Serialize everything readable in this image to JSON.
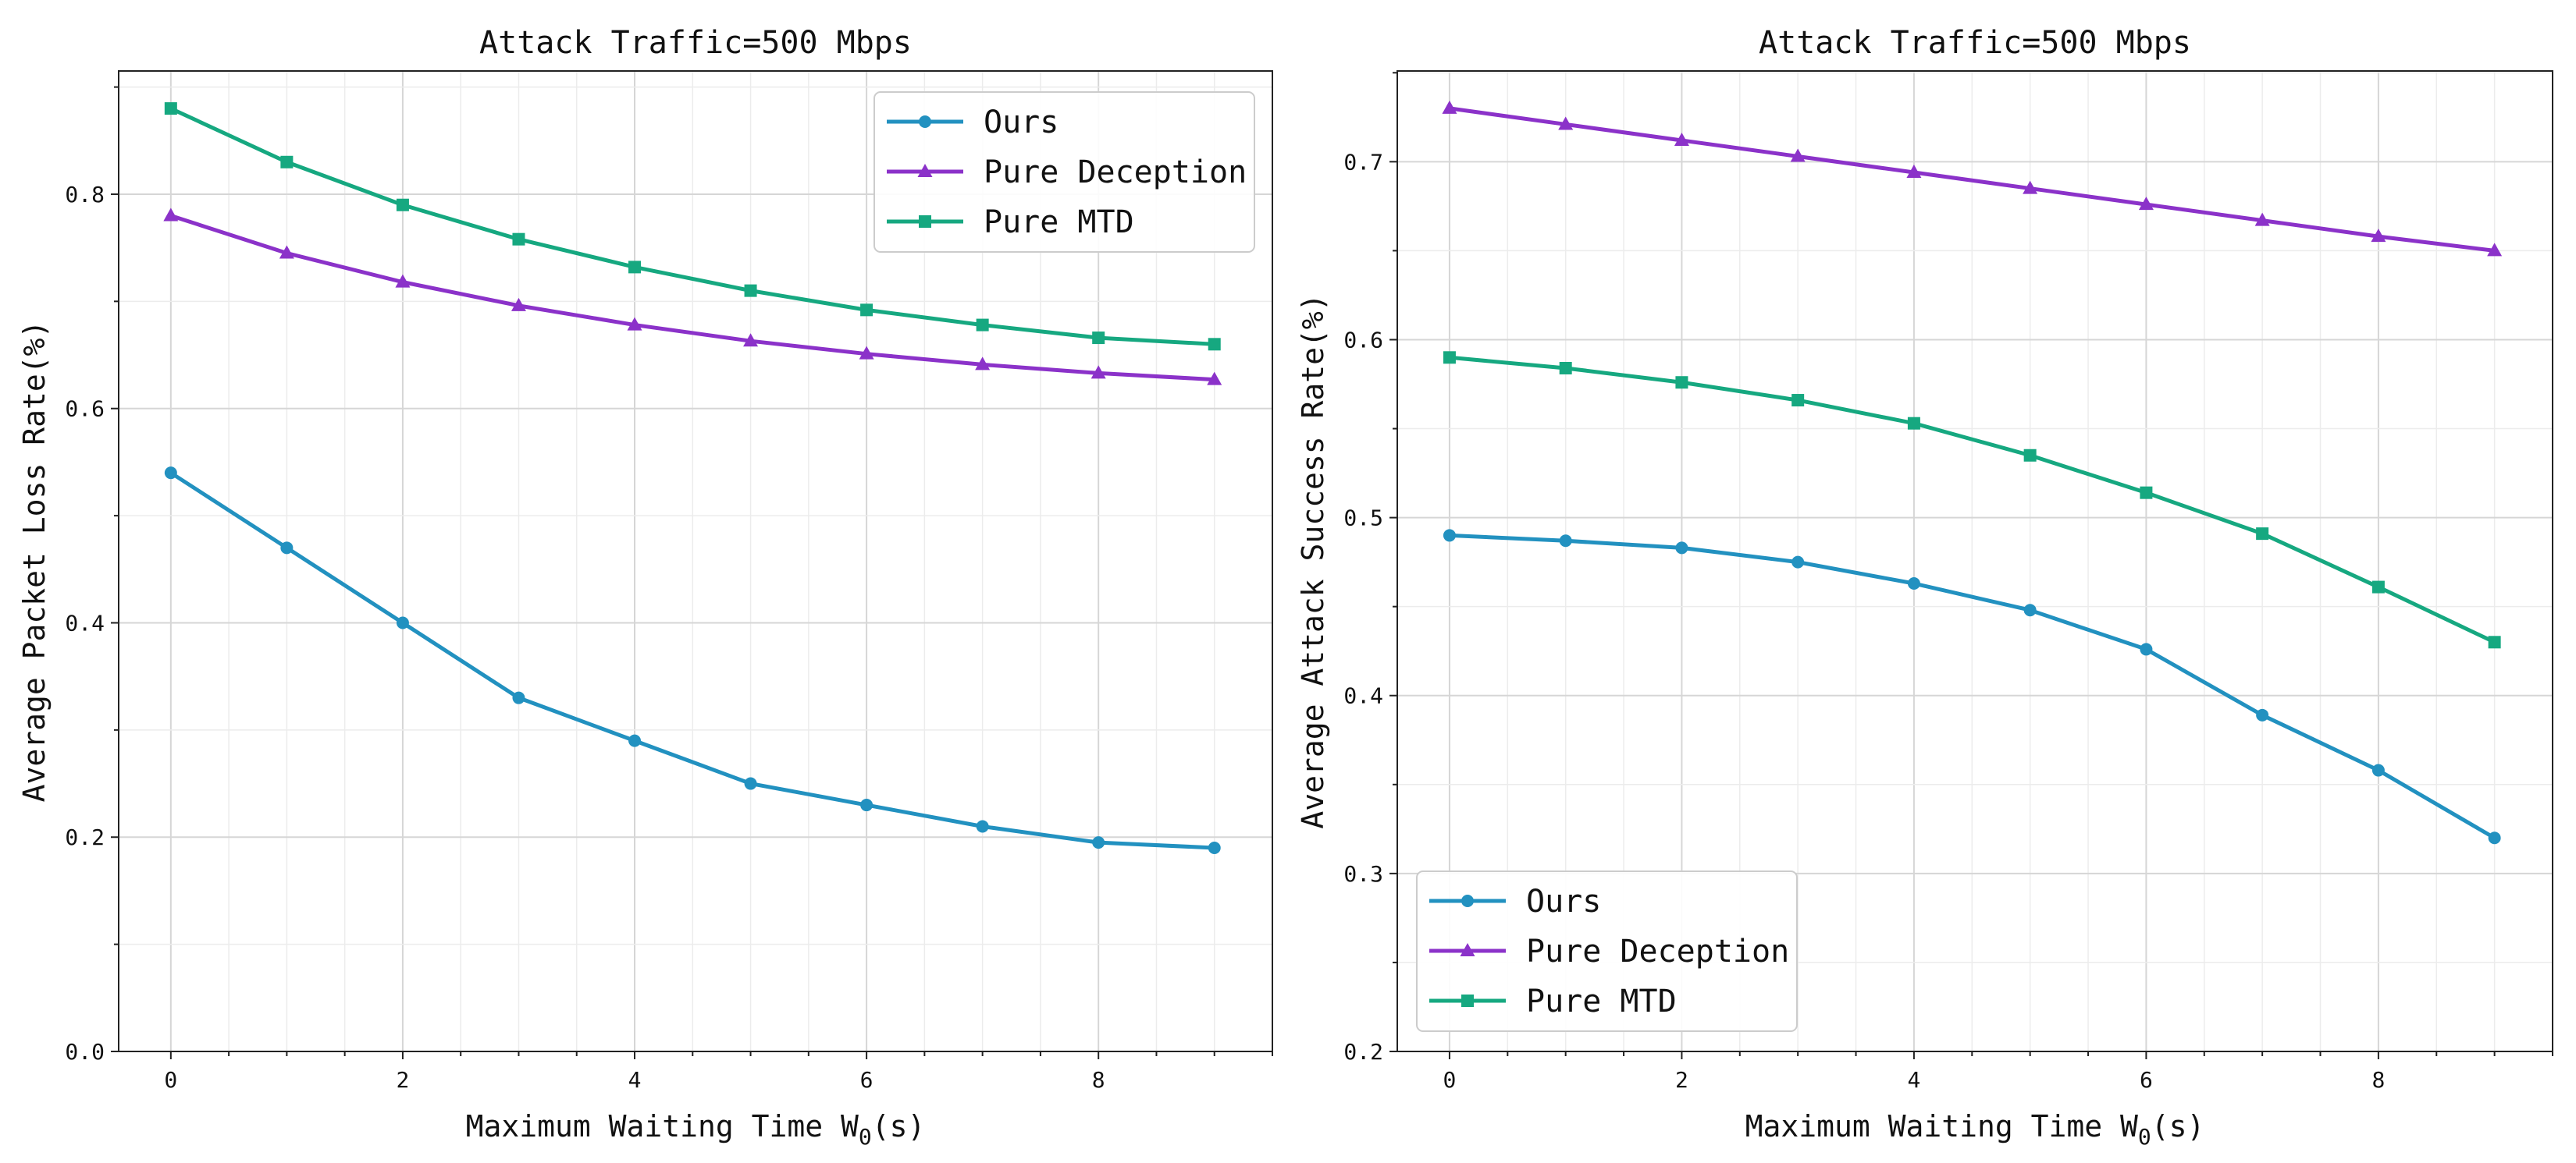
{
  "chart_data": [
    {
      "type": "line",
      "title": "Attack Traffic=500 Mbps",
      "xlabel": "Maximum Waiting Time W",
      "xlabel_sub": "0",
      "xlabel_suffix": "(s)",
      "ylabel": "Average Packet Loss Rate(%)",
      "x": [
        0,
        1,
        2,
        3,
        4,
        5,
        6,
        7,
        8,
        9
      ],
      "xlim": [
        -0.45,
        9.5
      ],
      "ylim": [
        0.0,
        0.915
      ],
      "x_ticks": [
        0,
        2,
        4,
        6,
        8
      ],
      "y_ticks": [
        0.0,
        0.2,
        0.4,
        0.6,
        0.8
      ],
      "y_tick_labels": [
        "0.0",
        "0.2",
        "0.4",
        "0.6",
        "0.8"
      ],
      "grid": true,
      "legend_position": "upper right",
      "series": [
        {
          "name": "Ours",
          "color": "#2291c0",
          "marker": "circle",
          "values": [
            0.54,
            0.47,
            0.4,
            0.33,
            0.29,
            0.25,
            0.23,
            0.21,
            0.195,
            0.19
          ]
        },
        {
          "name": "Pure Deception",
          "color": "#8b32c9",
          "marker": "triangle",
          "values": [
            0.78,
            0.745,
            0.718,
            0.696,
            0.678,
            0.663,
            0.651,
            0.641,
            0.633,
            0.627
          ]
        },
        {
          "name": "Pure MTD",
          "color": "#16a880",
          "marker": "square",
          "values": [
            0.88,
            0.83,
            0.79,
            0.758,
            0.732,
            0.71,
            0.692,
            0.678,
            0.666,
            0.66
          ]
        }
      ]
    },
    {
      "type": "line",
      "title": "Attack Traffic=500 Mbps",
      "xlabel": "Maximum Waiting Time W",
      "xlabel_sub": "0",
      "xlabel_suffix": "(s)",
      "ylabel": "Average Attack Success Rate(%)",
      "x": [
        0,
        1,
        2,
        3,
        4,
        5,
        6,
        7,
        8,
        9
      ],
      "xlim": [
        -0.45,
        9.5
      ],
      "ylim": [
        0.2,
        0.751
      ],
      "x_ticks": [
        0,
        2,
        4,
        6,
        8
      ],
      "y_ticks": [
        0.2,
        0.3,
        0.4,
        0.5,
        0.6,
        0.7
      ],
      "y_tick_labels": [
        "0.2",
        "0.3",
        "0.4",
        "0.5",
        "0.6",
        "0.7"
      ],
      "grid": true,
      "legend_position": "lower left",
      "series": [
        {
          "name": "Ours",
          "color": "#2291c0",
          "marker": "circle",
          "values": [
            0.49,
            0.487,
            0.483,
            0.475,
            0.463,
            0.448,
            0.426,
            0.389,
            0.358,
            0.32
          ]
        },
        {
          "name": "Pure Deception",
          "color": "#8b32c9",
          "marker": "triangle",
          "values": [
            0.73,
            0.721,
            0.712,
            0.703,
            0.694,
            0.685,
            0.676,
            0.667,
            0.658,
            0.65
          ]
        },
        {
          "name": "Pure MTD",
          "color": "#16a880",
          "marker": "square",
          "values": [
            0.59,
            0.584,
            0.576,
            0.566,
            0.553,
            0.535,
            0.514,
            0.491,
            0.461,
            0.43
          ]
        }
      ]
    }
  ]
}
